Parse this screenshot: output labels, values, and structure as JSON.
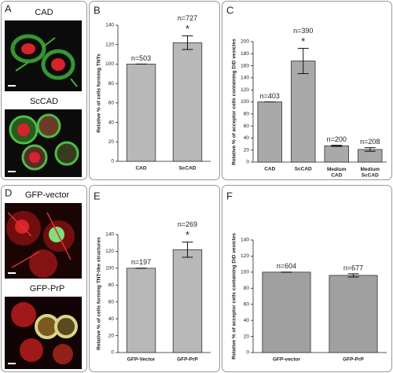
{
  "chart_data": [
    {
      "type": "bar",
      "panel": "B",
      "ylabel": "Relative % of cells forming TNTs",
      "categories": [
        "CAD",
        "ScCAD"
      ],
      "values": [
        100,
        122
      ],
      "errors": [
        0,
        7
      ],
      "value_labels": [
        "n=503",
        "n=727"
      ],
      "significance": [
        null,
        "*"
      ],
      "color": "#b8b8b8",
      "ylim": [
        0,
        140
      ],
      "yticks": [
        0,
        20,
        40,
        60,
        80,
        100,
        120,
        140
      ]
    },
    {
      "type": "bar",
      "panel": "C",
      "ylabel": "Relative % of acceptor cells containing DiD vesicles",
      "categories": [
        "CAD",
        "ScCAD",
        "Medium CAD",
        "Medium ScCAD"
      ],
      "values": [
        100,
        168,
        27,
        21
      ],
      "errors": [
        0,
        21,
        1,
        3
      ],
      "value_labels": [
        "n=403",
        "n=390",
        "n=200",
        "n=208"
      ],
      "significance": [
        null,
        "*",
        null,
        null
      ],
      "color": "#a9a9a9",
      "ylim": [
        0,
        200
      ],
      "yticks": [
        0,
        20,
        40,
        60,
        80,
        100,
        120,
        140,
        160,
        180,
        200
      ]
    },
    {
      "type": "bar",
      "panel": "E",
      "ylabel": "Relative % of cells forming TNT-like structures",
      "categories": [
        "GFP-Vector",
        "GFP-PrP"
      ],
      "values": [
        100,
        122
      ],
      "errors": [
        0,
        9
      ],
      "value_labels": [
        "n=197",
        "n=269"
      ],
      "significance": [
        null,
        "*"
      ],
      "color": "#b8b8b8",
      "ylim": [
        0,
        140
      ],
      "yticks": [
        0,
        20,
        40,
        60,
        80,
        100,
        120,
        140
      ]
    },
    {
      "type": "bar",
      "panel": "F",
      "ylabel": "Relative % of acceptor cells containing DiD vesicles",
      "categories": [
        "GFP-vector",
        "GFP-PrP"
      ],
      "values": [
        100,
        96
      ],
      "errors": [
        0,
        2
      ],
      "value_labels": [
        "n=604",
        "n=677"
      ],
      "significance": [
        null,
        null
      ],
      "color": "#a0a0a0",
      "ylim": [
        0,
        140
      ],
      "yticks": [
        0,
        20,
        40,
        60,
        80,
        100,
        120,
        140
      ]
    }
  ],
  "images": [
    {
      "panel": "A",
      "labels": [
        "CAD",
        "ScCAD"
      ]
    },
    {
      "panel": "D",
      "labels": [
        "GFP-vector",
        "GFP-PrP"
      ]
    }
  ]
}
